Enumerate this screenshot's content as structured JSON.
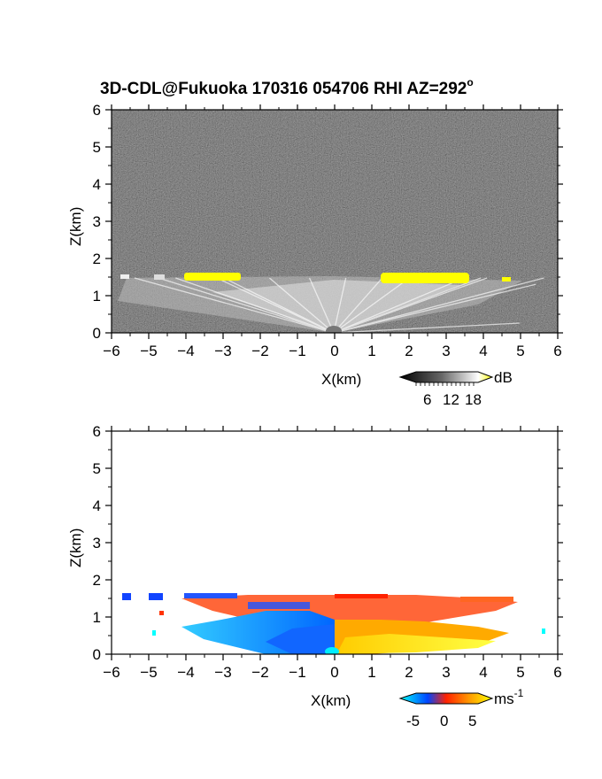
{
  "chart_data": [
    {
      "type": "heatmap",
      "title": "3D-CDL@Fukuoka 170316 054706 RHI AZ=292",
      "title_superscript": "o",
      "xlabel": "X(km)",
      "ylabel": "Z(km)",
      "xlim": [
        -6,
        6
      ],
      "ylim": [
        0,
        6
      ],
      "xticks": [
        "-6",
        "-5",
        "-4",
        "-3",
        "-2",
        "-1",
        "0",
        "1",
        "2",
        "3",
        "4",
        "5",
        "6"
      ],
      "yticks": [
        "0",
        "1",
        "2",
        "3",
        "4",
        "5",
        "6"
      ],
      "colorbar": {
        "unit": "dB",
        "tick_labels": [
          "6",
          "12",
          "18"
        ],
        "colors": [
          "#000000",
          "#555555",
          "#aaaaaa",
          "#ffffff",
          "#ffff00"
        ]
      },
      "features": {
        "echo_top_km": 1.5,
        "strong_echo_segments_km": [
          [
            -4.0,
            -2.6
          ],
          [
            1.3,
            3.6
          ],
          [
            4.6,
            4.8
          ]
        ],
        "strong_echo_color": "#ffff00"
      }
    },
    {
      "type": "heatmap",
      "xlabel": "X(km)",
      "ylabel": "Z(km)",
      "xlim": [
        -6,
        6
      ],
      "ylim": [
        0,
        6
      ],
      "xticks": [
        "-6",
        "-5",
        "-4",
        "-3",
        "-2",
        "-1",
        "0",
        "1",
        "2",
        "3",
        "4",
        "5",
        "6"
      ],
      "yticks": [
        "0",
        "1",
        "2",
        "3",
        "4",
        "5",
        "6"
      ],
      "colorbar": {
        "unit": "ms",
        "unit_superscript": "-1",
        "tick_labels": [
          "-5",
          "0",
          "5"
        ],
        "colors": [
          "#00ffff",
          "#0055ff",
          "#ff0000",
          "#ff9900",
          "#ffff00"
        ]
      },
      "features": {
        "echo_top_km": 1.5,
        "negative_velocity_side": "left",
        "positive_velocity_side": "right"
      }
    }
  ]
}
